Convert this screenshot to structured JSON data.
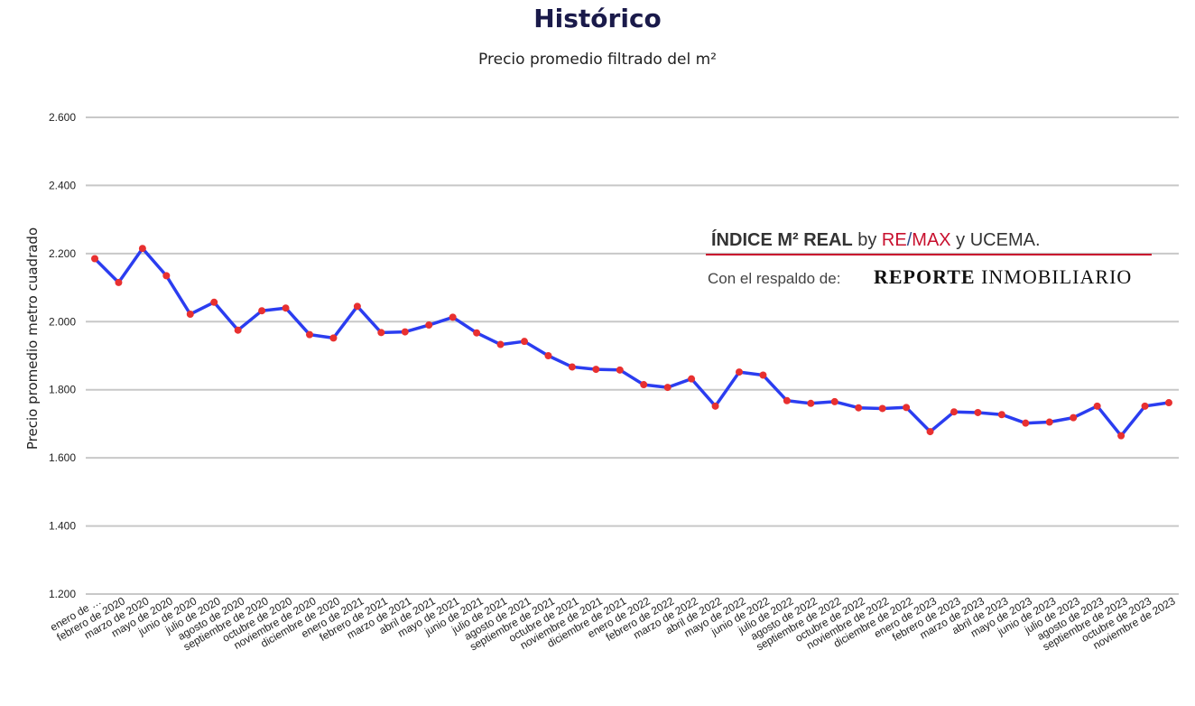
{
  "chart_data": {
    "type": "line",
    "title": "Histórico",
    "subtitle": "Precio promedio filtrado del m²",
    "ylabel": "Precio promedio metro cuadrado",
    "xlabel": "",
    "ylim": [
      1200,
      2600
    ],
    "yticks": [
      "1.200",
      "1.400",
      "1.600",
      "1.800",
      "2.000",
      "2.200",
      "2.400",
      "2.600"
    ],
    "ytick_values": [
      1200,
      1400,
      1600,
      1800,
      2000,
      2200,
      2400,
      2600
    ],
    "grid": "horizontal",
    "line_color": "#2b3df0",
    "marker_color": "#e83030",
    "categories": [
      "enero de …",
      "febrero de 2020",
      "marzo de 2020",
      "mayo de 2020",
      "junio de 2020",
      "julio de 2020",
      "agosto de 2020",
      "septiembre de 2020",
      "octubre de 2020",
      "noviembre de 2020",
      "diciembre de 2020",
      "enero de 2021",
      "febrero de 2021",
      "marzo de 2021",
      "abril de 2021",
      "mayo de 2021",
      "junio de 2021",
      "julio de 2021",
      "agosto de 2021",
      "septiembre de 2021",
      "octubre de 2021",
      "noviembre de 2021",
      "diciembre de 2021",
      "enero de 2022",
      "febrero de 2022",
      "marzo de 2022",
      "abril de 2022",
      "mayo de 2022",
      "junio de 2022",
      "julio de 2022",
      "agosto de 2022",
      "septiembre de 2022",
      "octubre de 2022",
      "noviembre de 2022",
      "diciembre de 2022",
      "enero de 2023",
      "febrero de 2023",
      "marzo de 2023",
      "abril de 2023",
      "mayo de 2023",
      "junio de 2023",
      "julio de 2023",
      "agosto de 2023",
      "septiembre de 2023",
      "octubre de 2023",
      "noviembre de 2023"
    ],
    "values": [
      2185,
      2115,
      2215,
      2135,
      2022,
      2057,
      1975,
      2032,
      2040,
      1962,
      1952,
      2045,
      1968,
      1970,
      1990,
      2013,
      1967,
      1933,
      1942,
      1900,
      1867,
      1860,
      1858,
      1815,
      1807,
      1832,
      1752,
      1852,
      1843,
      1768,
      1760,
      1765,
      1747,
      1745,
      1748,
      1677,
      1735,
      1733,
      1727,
      1702,
      1705,
      1718,
      1752,
      1665,
      1752,
      1762
    ]
  },
  "watermark": {
    "line1_prefix": "ÍNDICE M² REAL",
    "line1_by": " by ",
    "line1_re": "RE",
    "line1_slash": "/",
    "line1_max": "MAX",
    "line1_suffix": " y UCEMA.",
    "line2_prefix": "Con el respaldo de:",
    "line2_brand_bold": "REPORTE",
    "line2_brand_rest": " INMOBILIARIO",
    "accent_color": "#c8102e",
    "blue_color": "#2c4a8a"
  }
}
